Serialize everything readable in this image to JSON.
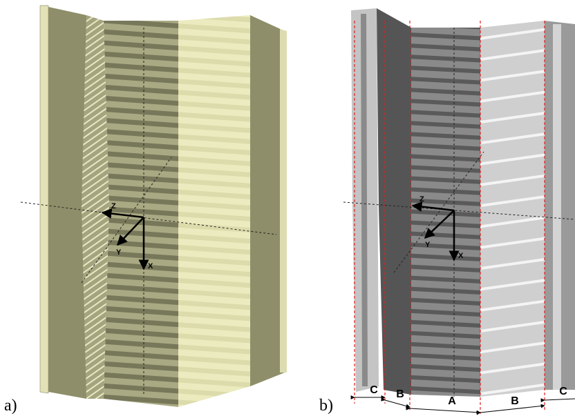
{
  "panels": [
    {
      "label": "a)",
      "axes": {
        "z": "Z",
        "y": "Y",
        "x": "X"
      }
    },
    {
      "label": "b)",
      "axes": {
        "z": "Z",
        "y": "Y",
        "x": "X"
      },
      "regions": [
        "C",
        "B",
        "A",
        "B",
        "C"
      ]
    }
  ]
}
